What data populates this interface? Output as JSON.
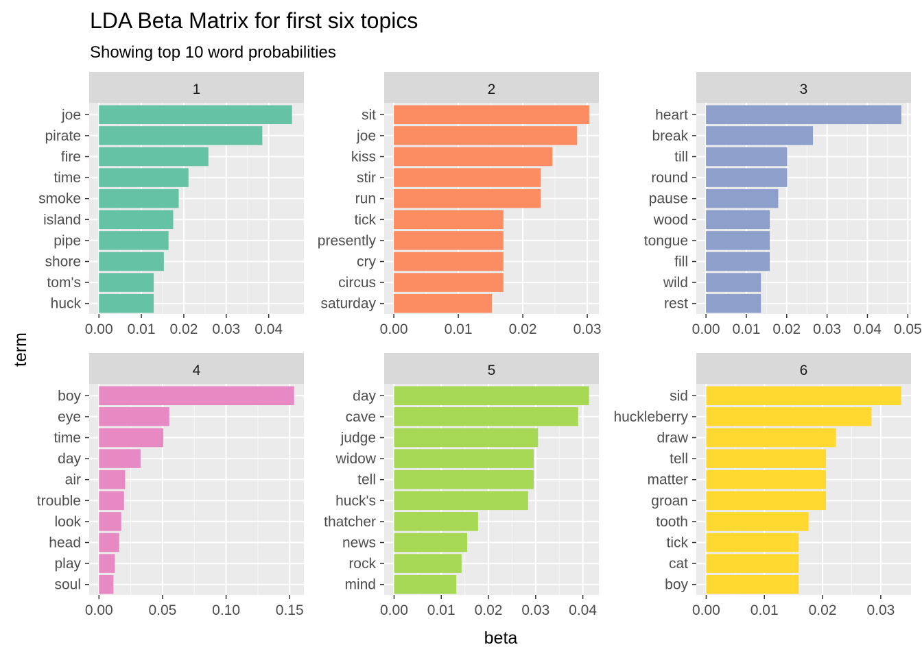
{
  "chart_data": {
    "type": "bar",
    "orientation": "horizontal",
    "title": "LDA Beta Matrix for first six topics",
    "subtitle": "Showing top 10 word probabilities",
    "xlabel": "beta",
    "ylabel": "term",
    "grid": true,
    "legend": "none",
    "panels": [
      {
        "label": "1",
        "color": "#66c2a5",
        "terms": [
          "joe",
          "pirate",
          "fire",
          "time",
          "smoke",
          "island",
          "pipe",
          "shore",
          "tom's",
          "huck"
        ],
        "values": [
          0.0455,
          0.0385,
          0.0258,
          0.0211,
          0.0188,
          0.0175,
          0.0164,
          0.0153,
          0.0129,
          0.0129
        ],
        "xlim": [
          -0.0023,
          0.0483
        ],
        "ticks": [
          0,
          0.01,
          0.02,
          0.03,
          0.04
        ],
        "tick_labels": [
          "0.00",
          "0.01",
          "0.02",
          "0.03",
          "0.04"
        ]
      },
      {
        "label": "2",
        "color": "#fc8d62",
        "terms": [
          "sit",
          "joe",
          "kiss",
          "stir",
          "run",
          "tick",
          "presently",
          "cry",
          "circus",
          "saturday"
        ],
        "values": [
          0.0303,
          0.0284,
          0.0246,
          0.0228,
          0.0228,
          0.017,
          0.017,
          0.017,
          0.017,
          0.0152
        ],
        "xlim": [
          -0.0015,
          0.0318
        ],
        "ticks": [
          0,
          0.01,
          0.02,
          0.03
        ],
        "tick_labels": [
          "0.00",
          "0.01",
          "0.02",
          "0.03"
        ]
      },
      {
        "label": "3",
        "color": "#8da0cb",
        "terms": [
          "heart",
          "break",
          "till",
          "round",
          "pause",
          "wood",
          "tongue",
          "fill",
          "wild",
          "rest"
        ],
        "values": [
          0.0484,
          0.0265,
          0.0201,
          0.0201,
          0.0179,
          0.0158,
          0.0158,
          0.0158,
          0.0136,
          0.0136
        ],
        "xlim": [
          -0.0024,
          0.0508
        ],
        "ticks": [
          0,
          0.01,
          0.02,
          0.03,
          0.04,
          0.05
        ],
        "tick_labels": [
          "0.00",
          "0.01",
          "0.02",
          "0.03",
          "0.04",
          "0.05"
        ]
      },
      {
        "label": "4",
        "color": "#e78ac3",
        "terms": [
          "boy",
          "eye",
          "time",
          "day",
          "air",
          "trouble",
          "look",
          "head",
          "play",
          "soul"
        ],
        "values": [
          0.1535,
          0.0553,
          0.0506,
          0.0327,
          0.0206,
          0.0197,
          0.0175,
          0.0159,
          0.0125,
          0.0114
        ],
        "xlim": [
          -0.0077,
          0.1612
        ],
        "ticks": [
          0,
          0.05,
          0.1,
          0.15
        ],
        "tick_labels": [
          "0.00",
          "0.05",
          "0.10",
          "0.15"
        ]
      },
      {
        "label": "5",
        "color": "#a6d854",
        "terms": [
          "day",
          "cave",
          "judge",
          "widow",
          "tell",
          "huck's",
          "thatcher",
          "news",
          "rock",
          "mind"
        ],
        "values": [
          0.0413,
          0.039,
          0.0305,
          0.0296,
          0.0296,
          0.0284,
          0.0178,
          0.0155,
          0.0143,
          0.0132
        ],
        "xlim": [
          -0.0021,
          0.0434
        ],
        "ticks": [
          0,
          0.01,
          0.02,
          0.03,
          0.04
        ],
        "tick_labels": [
          "0.00",
          "0.01",
          "0.02",
          "0.03",
          "0.04"
        ]
      },
      {
        "label": "6",
        "color": "#ffd92f",
        "terms": [
          "sid",
          "huckleberry",
          "draw",
          "tell",
          "matter",
          "groan",
          "tooth",
          "tick",
          "cat",
          "boy"
        ],
        "values": [
          0.0335,
          0.0284,
          0.0223,
          0.0206,
          0.0206,
          0.0206,
          0.0176,
          0.0159,
          0.0159,
          0.0159
        ],
        "xlim": [
          -0.0017,
          0.0352
        ],
        "ticks": [
          0,
          0.01,
          0.02,
          0.03
        ],
        "tick_labels": [
          "0.00",
          "0.01",
          "0.02",
          "0.03"
        ]
      }
    ]
  }
}
